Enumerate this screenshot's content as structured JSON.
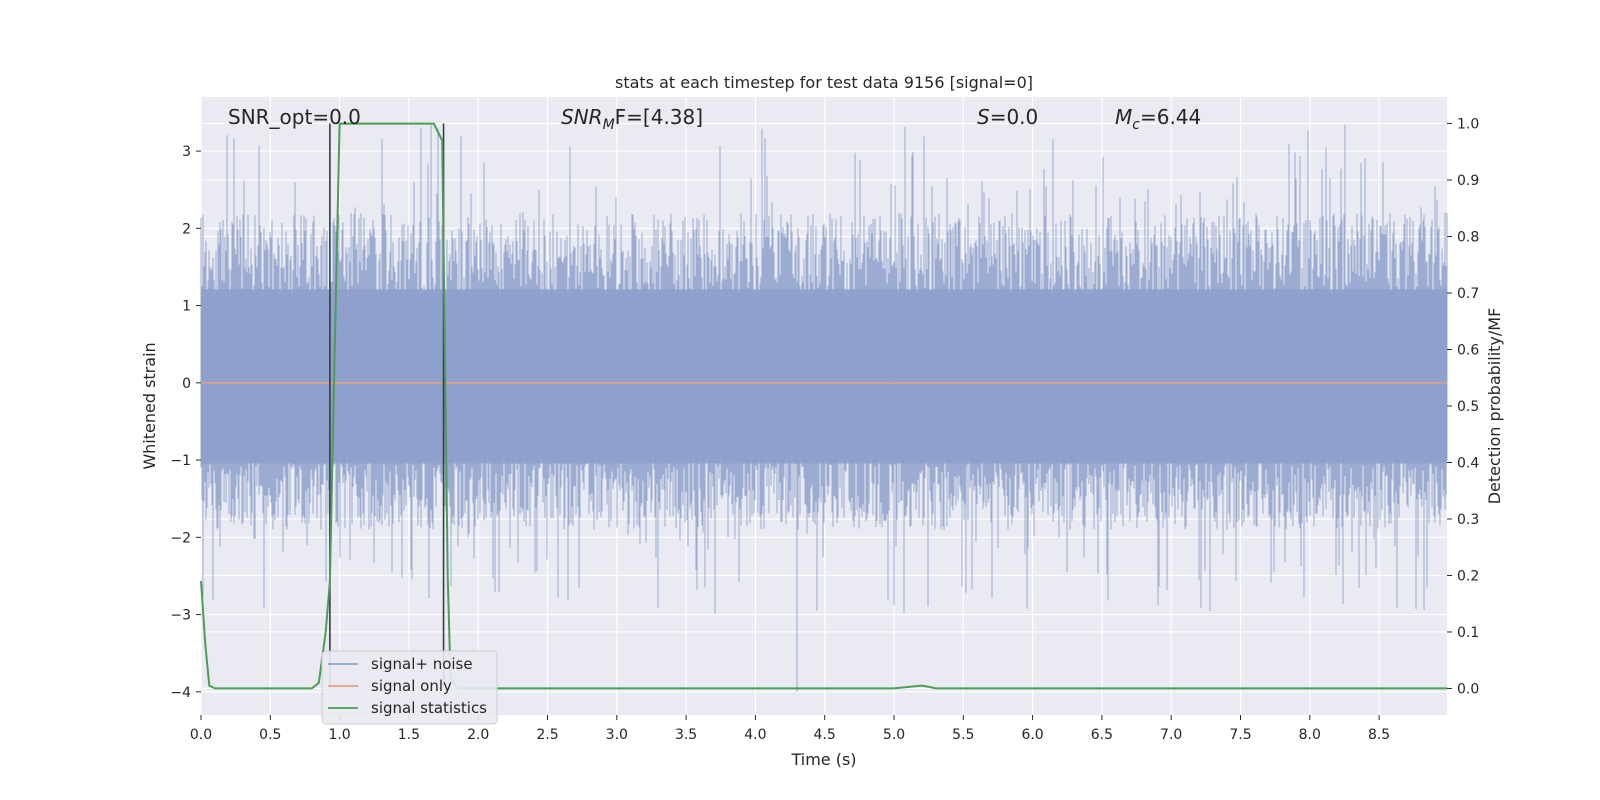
{
  "chart_data": {
    "type": "line",
    "title": "stats at each timestep for test data 9156 [signal=0]",
    "xlabel": "Time (s)",
    "ylabel_left": "Whitened strain",
    "ylabel_right": "Detection probability/MF",
    "xlim": [
      0.0,
      8.99
    ],
    "ylim_left": [
      -4.3,
      3.7
    ],
    "ylim_right": [
      -0.047,
      1.047
    ],
    "x_ticks": [
      0.0,
      0.5,
      1.0,
      1.5,
      2.0,
      2.5,
      3.0,
      3.5,
      4.0,
      4.5,
      5.0,
      5.5,
      6.0,
      6.5,
      7.0,
      7.5,
      8.0,
      8.5
    ],
    "x_tick_labels": [
      "0.0",
      "0.5",
      "1.0",
      "1.5",
      "2.0",
      "2.5",
      "3.0",
      "3.5",
      "4.0",
      "4.5",
      "5.0",
      "5.5",
      "6.0",
      "6.5",
      "7.0",
      "7.5",
      "8.0",
      "8.5"
    ],
    "y_left_ticks": [
      -4,
      -3,
      -2,
      -1,
      0,
      1,
      2,
      3
    ],
    "y_left_tick_labels": [
      "−4",
      "−3",
      "−2",
      "−1",
      "0",
      "1",
      "2",
      "3"
    ],
    "y_right_ticks": [
      0.0,
      0.1,
      0.2,
      0.3,
      0.4,
      0.5,
      0.6,
      0.7,
      0.8,
      0.9,
      1.0
    ],
    "y_right_tick_labels": [
      "0.0",
      "0.1",
      "0.2",
      "0.3",
      "0.4",
      "0.5",
      "0.6",
      "0.7",
      "0.8",
      "0.9",
      "1.0"
    ],
    "grid": true,
    "legend_position": "lower-left",
    "annotations": {
      "snr_opt": "SNR_opt=0.0",
      "snr_mf_main": "SNR",
      "snr_mf_sub": "M",
      "snr_mf_rest": "F=[4.38]",
      "s_main": "S",
      "s_rest": "=0.0",
      "mc_main": "M",
      "mc_sub": "c",
      "mc_rest": "=6.44"
    },
    "vertical_lines": [
      0.93,
      1.75
    ],
    "noise_band": {
      "axis": "left",
      "min": -1.9,
      "max": 2.2,
      "spike_max": 3.35,
      "spike_min": -4.0
    },
    "series": [
      {
        "name": "signal+ noise",
        "axis": "left",
        "color": "#8da0cb",
        "kind": "strain"
      },
      {
        "name": "signal only",
        "axis": "left",
        "color": "#e8a080",
        "x": [
          0.0,
          8.99
        ],
        "y": [
          0.0,
          0.0
        ]
      },
      {
        "name": "signal statistics",
        "axis": "right",
        "color": "#4a9e55",
        "x": [
          0.0,
          0.03,
          0.06,
          0.1,
          0.2,
          0.8,
          0.85,
          0.9,
          0.93,
          0.96,
          1.0,
          1.05,
          1.2,
          1.5,
          1.68,
          1.74,
          1.78,
          1.8,
          1.85,
          2.0,
          3.0,
          4.0,
          5.0,
          5.2,
          5.25,
          5.3,
          6.0,
          7.0,
          8.0,
          8.99
        ],
        "y": [
          0.19,
          0.08,
          0.005,
          0.0,
          0.0,
          0.0,
          0.01,
          0.1,
          0.19,
          0.55,
          1.0,
          1.0,
          1.0,
          1.0,
          1.0,
          0.97,
          0.2,
          0.02,
          0.0,
          0.0,
          0.0,
          0.0,
          0.0,
          0.005,
          0.003,
          0.0,
          0.0,
          0.0,
          0.0,
          0.0
        ]
      }
    ]
  }
}
